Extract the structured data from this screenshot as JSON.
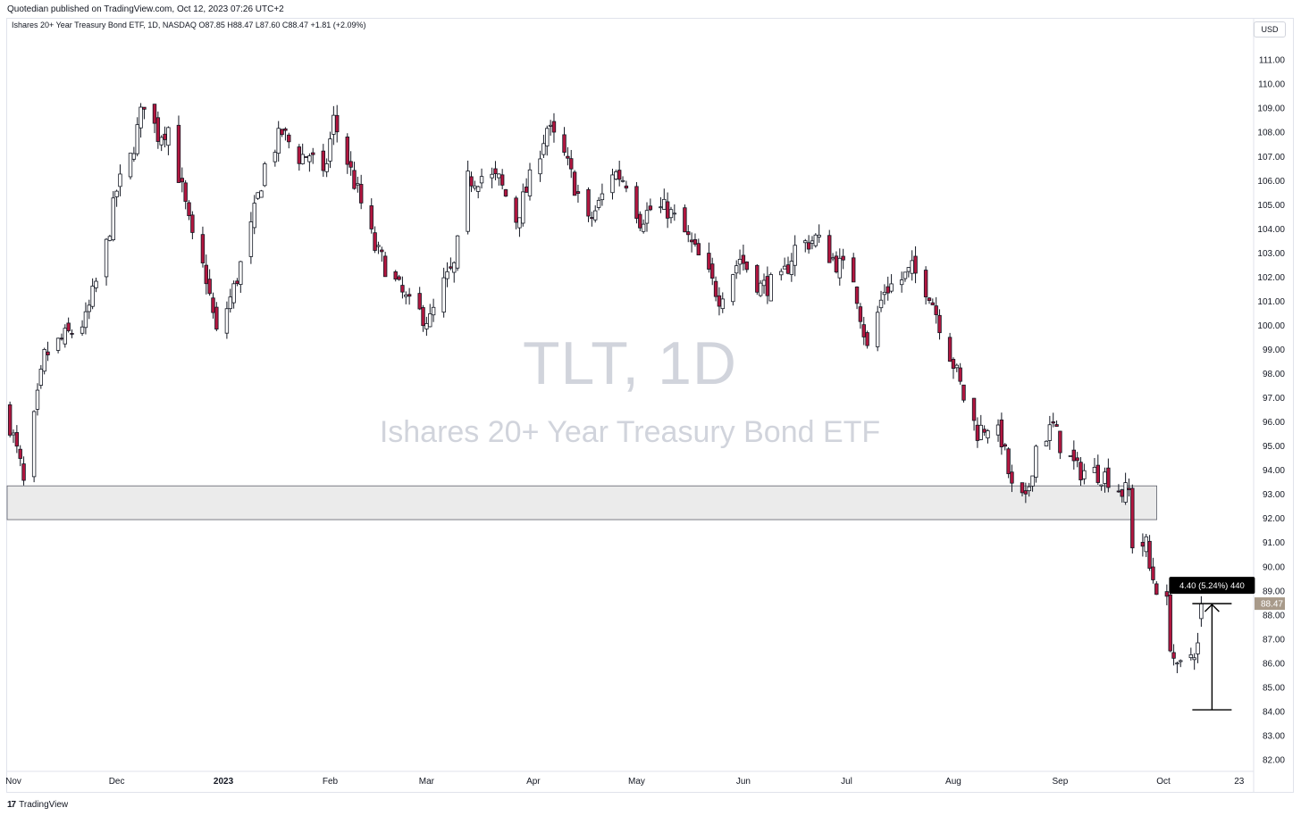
{
  "header": {
    "published_text": "Quotedian published on TradingView.com, Oct 12, 2023 07:26 UTC+2"
  },
  "legend": {
    "text": "Ishares 20+ Year Treasury Bond ETF, 1D, NASDAQ  O87.85  H88.47  L87.60  C88.47  +1.81 (+2.09%)"
  },
  "currency_label": "USD",
  "watermark": {
    "symbol": "TLT, 1D",
    "description": "Ishares 20+ Year Treasury Bond ETF"
  },
  "footer": {
    "logo": "17",
    "brand": "TradingView"
  },
  "colors": {
    "up_body": "#ffffff",
    "down_body": "#b2163f",
    "wick": "#131722",
    "zone_fill": "#ebebeb",
    "price_tag": "#a89a8a",
    "measure_label_bg": "#000000"
  },
  "chart_data": {
    "type": "candlestick",
    "ylim": [
      81.6,
      111.8
    ],
    "y_ticks": [
      82,
      83,
      84,
      85,
      86,
      87,
      88,
      89,
      90,
      91,
      92,
      93,
      94,
      95,
      96,
      97,
      98,
      99,
      100,
      101,
      102,
      103,
      104,
      105,
      106,
      107,
      108,
      109,
      110,
      111
    ],
    "y_tick_labels": [
      "82.00",
      "83.00",
      "84.00",
      "85.00",
      "86.00",
      "87.00",
      "88.00",
      "89.00",
      "90.00",
      "91.00",
      "92.00",
      "93.00",
      "94.00",
      "95.00",
      "96.00",
      "97.00",
      "98.00",
      "99.00",
      "100.00",
      "101.00",
      "102.00",
      "103.00",
      "104.00",
      "105.00",
      "106.00",
      "107.00",
      "108.00",
      "109.00",
      "110.00",
      "111.00"
    ],
    "x_labels": [
      {
        "label": "Nov",
        "date": "2022-11-01",
        "bold": false
      },
      {
        "label": "Dec",
        "date": "2022-12-01",
        "bold": false
      },
      {
        "label": "2023",
        "date": "2023-01-01",
        "bold": true
      },
      {
        "label": "Feb",
        "date": "2023-02-01",
        "bold": false
      },
      {
        "label": "Mar",
        "date": "2023-03-01",
        "bold": false
      },
      {
        "label": "Apr",
        "date": "2023-04-01",
        "bold": false
      },
      {
        "label": "May",
        "date": "2023-05-01",
        "bold": false
      },
      {
        "label": "Jun",
        "date": "2023-06-01",
        "bold": false
      },
      {
        "label": "Jul",
        "date": "2023-07-01",
        "bold": false
      },
      {
        "label": "Aug",
        "date": "2023-08-01",
        "bold": false
      },
      {
        "label": "Sep",
        "date": "2023-09-01",
        "bold": false
      },
      {
        "label": "Oct",
        "date": "2023-10-01",
        "bold": false
      },
      {
        "label": "23",
        "date": "2023-10-23",
        "bold": false
      }
    ],
    "last_price": 88.47,
    "last_price_label": "88.47",
    "support_zone": {
      "top": 93.35,
      "bottom": 91.95,
      "start": "2022-10-31",
      "end": "2023-09-27"
    },
    "measure": {
      "from_price": 84.07,
      "to_price": 88.47,
      "date": "2023-10-12",
      "label": "4.40 (5.24%) 440"
    },
    "anchors": [
      [
        "2022-10-31",
        95.9
      ],
      [
        "2022-11-03",
        94.2
      ],
      [
        "2022-11-04",
        93.4
      ],
      [
        "2022-11-10",
        98.7
      ],
      [
        "2022-11-15",
        99.4
      ],
      [
        "2022-11-22",
        100.2
      ],
      [
        "2022-11-28",
        103.3
      ],
      [
        "2022-12-01",
        105.6
      ],
      [
        "2022-12-05",
        106.9
      ],
      [
        "2022-12-09",
        109.3
      ],
      [
        "2022-12-13",
        107.9
      ],
      [
        "2022-12-16",
        108.2
      ],
      [
        "2022-12-20",
        105.6
      ],
      [
        "2022-12-23",
        103.5
      ],
      [
        "2022-12-27",
        102.0
      ],
      [
        "2022-12-30",
        99.6
      ],
      [
        "2023-01-04",
        101.5
      ],
      [
        "2023-01-09",
        104.0
      ],
      [
        "2023-01-13",
        106.6
      ],
      [
        "2023-01-18",
        108.0
      ],
      [
        "2023-01-23",
        107.0
      ],
      [
        "2023-01-26",
        107.1
      ],
      [
        "2023-01-30",
        106.0
      ],
      [
        "2023-02-02",
        108.5
      ],
      [
        "2023-02-06",
        106.8
      ],
      [
        "2023-02-09",
        105.5
      ],
      [
        "2023-02-14",
        103.2
      ],
      [
        "2023-02-21",
        101.5
      ],
      [
        "2023-02-24",
        100.8
      ],
      [
        "2023-03-02",
        100.2
      ],
      [
        "2023-03-06",
        101.7
      ],
      [
        "2023-03-09",
        102.4
      ],
      [
        "2023-03-13",
        106.0
      ],
      [
        "2023-03-17",
        106.2
      ],
      [
        "2023-03-22",
        106.0
      ],
      [
        "2023-03-27",
        104.4
      ],
      [
        "2023-03-31",
        106.0
      ],
      [
        "2023-04-05",
        108.2
      ],
      [
        "2023-04-10",
        107.0
      ],
      [
        "2023-04-17",
        104.2
      ],
      [
        "2023-04-20",
        105.0
      ],
      [
        "2023-04-24",
        106.4
      ],
      [
        "2023-04-28",
        106.0
      ],
      [
        "2023-05-02",
        104.4
      ],
      [
        "2023-05-05",
        104.8
      ],
      [
        "2023-05-10",
        104.8
      ],
      [
        "2023-05-15",
        103.8
      ],
      [
        "2023-05-19",
        102.8
      ],
      [
        "2023-05-25",
        101.2
      ],
      [
        "2023-05-31",
        102.8
      ],
      [
        "2023-06-06",
        101.6
      ],
      [
        "2023-06-12",
        101.8
      ],
      [
        "2023-06-16",
        103.2
      ],
      [
        "2023-06-22",
        103.6
      ],
      [
        "2023-06-28",
        102.6
      ],
      [
        "2023-07-03",
        102.0
      ],
      [
        "2023-07-07",
        99.0
      ],
      [
        "2023-07-12",
        101.5
      ],
      [
        "2023-07-17",
        101.9
      ],
      [
        "2023-07-20",
        102.3
      ],
      [
        "2023-07-25",
        101.4
      ],
      [
        "2023-07-28",
        100.1
      ],
      [
        "2023-08-02",
        98.0
      ],
      [
        "2023-08-04",
        97.0
      ],
      [
        "2023-08-08",
        95.6
      ],
      [
        "2023-08-11",
        95.9
      ],
      [
        "2023-08-15",
        95.3
      ],
      [
        "2023-08-18",
        93.2
      ],
      [
        "2023-08-22",
        92.6
      ],
      [
        "2023-08-25",
        95.0
      ],
      [
        "2023-08-30",
        95.8
      ],
      [
        "2023-09-01",
        95.1
      ],
      [
        "2023-09-06",
        94.0
      ],
      [
        "2023-09-12",
        93.9
      ],
      [
        "2023-09-15",
        93.7
      ],
      [
        "2023-09-19",
        93.1
      ],
      [
        "2023-09-21",
        93.1
      ],
      [
        "2023-09-22",
        91.0
      ],
      [
        "2023-09-26",
        90.9
      ],
      [
        "2023-09-27",
        89.9
      ],
      [
        "2023-09-29",
        89.2
      ],
      [
        "2023-10-02",
        88.4
      ],
      [
        "2023-10-03",
        86.9
      ],
      [
        "2023-10-05",
        85.6
      ],
      [
        "2023-10-06",
        85.8
      ],
      [
        "2023-10-10",
        86.6
      ],
      [
        "2023-10-11",
        86.7
      ],
      [
        "2023-10-12",
        88.47
      ]
    ]
  }
}
